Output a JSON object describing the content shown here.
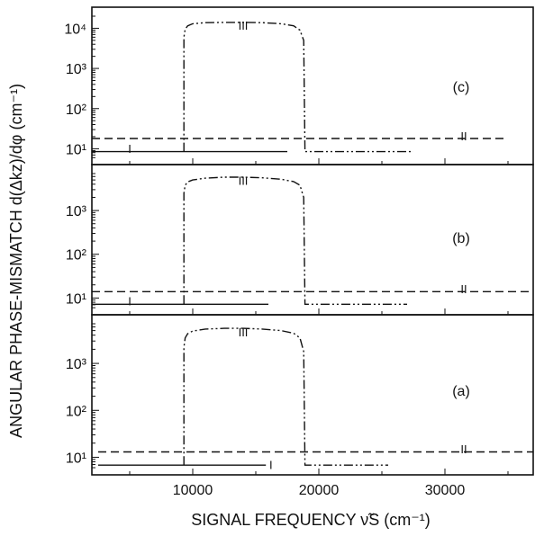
{
  "chart_data": {
    "type": "line",
    "xlabel": "SIGNAL FREQUENCY  ν̃S  (cm⁻¹)",
    "ylabel": "ANGULAR PHASE-MISMATCH  d(Δkz)/dφ  (cm⁻¹)",
    "x_tick_labels": [
      "10000",
      "20000",
      "30000"
    ],
    "x_ticks": [
      10000,
      20000,
      30000
    ],
    "xlim": [
      2000,
      37000
    ],
    "y_scale": "log",
    "panels": [
      {
        "label": "(c)",
        "ylim": [
          5.5,
          20000
        ],
        "y_ticks": [
          10,
          100,
          1000,
          10000
        ],
        "y_tick_labels": [
          "10¹",
          "10²",
          "10³",
          "10⁴"
        ],
        "series": [
          {
            "name": "I",
            "x": [
              2000,
              17500
            ],
            "y": [
              8.5,
              8.5
            ]
          },
          {
            "name": "II",
            "x": [
              2000,
              35000
            ],
            "y": [
              18,
              18
            ]
          },
          {
            "name": "III",
            "x": [
              9300,
              9300,
              9400,
              9600,
              10000,
              11000,
              12500,
              14000,
              15500,
              17000,
              18000,
              18500,
              18800,
              18900,
              19000,
              27500
            ],
            "y": [
              8.5,
              6000,
              9500,
              11500,
              13000,
              13800,
              14000,
              14000,
              13800,
              13000,
              11500,
              9000,
              5000,
              8.5,
              8.5,
              8.5
            ]
          }
        ],
        "annotations": [
          "I",
          "II",
          "III"
        ]
      },
      {
        "label": "(b)",
        "ylim": [
          5.5,
          7000
        ],
        "y_ticks": [
          10,
          100,
          1000
        ],
        "y_tick_labels": [
          "10¹",
          "10²",
          "10³"
        ],
        "series": [
          {
            "name": "I",
            "x": [
              2000,
              16000
            ],
            "y": [
              7.2,
              7.2
            ]
          },
          {
            "name": "II",
            "x": [
              2000,
              37000
            ],
            "y": [
              14,
              14
            ]
          },
          {
            "name": "III",
            "x": [
              9300,
              9300,
              9400,
              9600,
              10000,
              11000,
              12500,
              14000,
              15500,
              17000,
              18000,
              18500,
              18800,
              18900,
              19000,
              27000
            ],
            "y": [
              7.2,
              2500,
              3800,
              4500,
              5000,
              5500,
              5800,
              5800,
              5600,
              5200,
              4600,
              3800,
              2000,
              7.2,
              7.2,
              7.2
            ]
          }
        ],
        "annotations": [
          "I",
          "II",
          "III"
        ]
      },
      {
        "label": "(a)",
        "ylim": [
          5.5,
          7000
        ],
        "y_ticks": [
          10,
          100,
          1000
        ],
        "y_tick_labels": [
          "10¹",
          "10²",
          "10³"
        ],
        "series": [
          {
            "name": "I",
            "x": [
              2500,
              15800
            ],
            "y": [
              6.8,
              6.8
            ]
          },
          {
            "name": "II",
            "x": [
              2500,
              37000
            ],
            "y": [
              13,
              13
            ]
          },
          {
            "name": "III",
            "x": [
              9300,
              9300,
              9400,
              9600,
              10000,
              11000,
              12500,
              14000,
              15500,
              17000,
              18000,
              18500,
              18800,
              18900,
              19000,
              25500
            ],
            "y": [
              6.8,
              2200,
              3500,
              4300,
              4900,
              5400,
              5600,
              5600,
              5400,
              5000,
              4400,
              3500,
              1800,
              6.8,
              6.8,
              6.8
            ]
          }
        ],
        "annotations": [
          "I",
          "II",
          "III"
        ]
      }
    ]
  }
}
